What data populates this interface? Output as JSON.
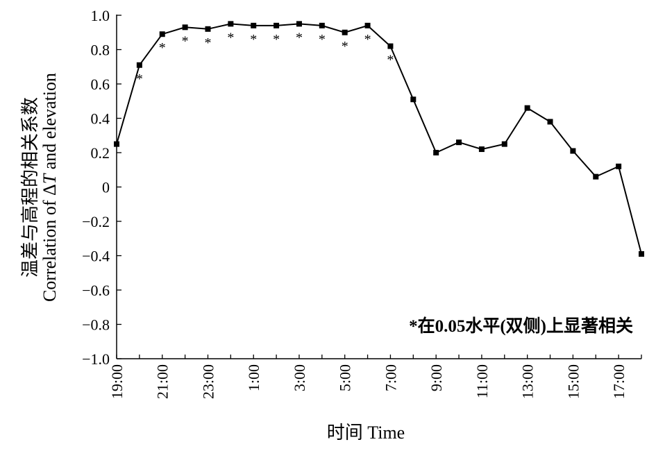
{
  "chart_data": {
    "type": "line",
    "xlabel": "时间 Time",
    "ylabel_cn": "温差与高程的相关系数",
    "ylabel_en_prefix": "Correlation of Δ",
    "ylabel_en_var": "T",
    "ylabel_en_suffix": " and elevation",
    "note": "*在0.05水平(双侧)上显著相关",
    "ylim": [
      -1.0,
      1.0
    ],
    "y_ticks": [
      {
        "value": -1.0,
        "label": "−1.0"
      },
      {
        "value": -0.8,
        "label": "−0.8"
      },
      {
        "value": -0.6,
        "label": "−0.6"
      },
      {
        "value": -0.4,
        "label": "−0.4"
      },
      {
        "value": -0.2,
        "label": "−0.2"
      },
      {
        "value": 0.0,
        "label": "0"
      },
      {
        "value": 0.2,
        "label": "0.2"
      },
      {
        "value": 0.4,
        "label": "0.4"
      },
      {
        "value": 0.6,
        "label": "0.6"
      },
      {
        "value": 0.8,
        "label": "0.8"
      },
      {
        "value": 1.0,
        "label": "1.0"
      }
    ],
    "x_ticks": [
      "19:00",
      "21:00",
      "23:00",
      "1:00",
      "3:00",
      "5:00",
      "7:00",
      "9:00",
      "11:00",
      "13:00",
      "15:00",
      "17:00"
    ],
    "x": [
      "19:00",
      "20:00",
      "21:00",
      "22:00",
      "23:00",
      "0:00",
      "1:00",
      "2:00",
      "3:00",
      "4:00",
      "5:00",
      "6:00",
      "7:00",
      "8:00",
      "9:00",
      "10:00",
      "11:00",
      "12:00",
      "13:00",
      "14:00",
      "15:00",
      "16:00",
      "17:00",
      "18:00"
    ],
    "values": [
      0.25,
      0.71,
      0.89,
      0.93,
      0.92,
      0.95,
      0.94,
      0.94,
      0.95,
      0.94,
      0.9,
      0.94,
      0.82,
      0.51,
      0.2,
      0.26,
      0.22,
      0.25,
      0.46,
      0.38,
      0.21,
      0.06,
      0.12,
      -0.39
    ],
    "significant": [
      false,
      true,
      true,
      true,
      true,
      true,
      true,
      true,
      true,
      true,
      true,
      true,
      true,
      false,
      false,
      false,
      false,
      false,
      false,
      false,
      false,
      false,
      false,
      false
    ],
    "marker": "square",
    "grid": false,
    "significance_marker": "*"
  }
}
